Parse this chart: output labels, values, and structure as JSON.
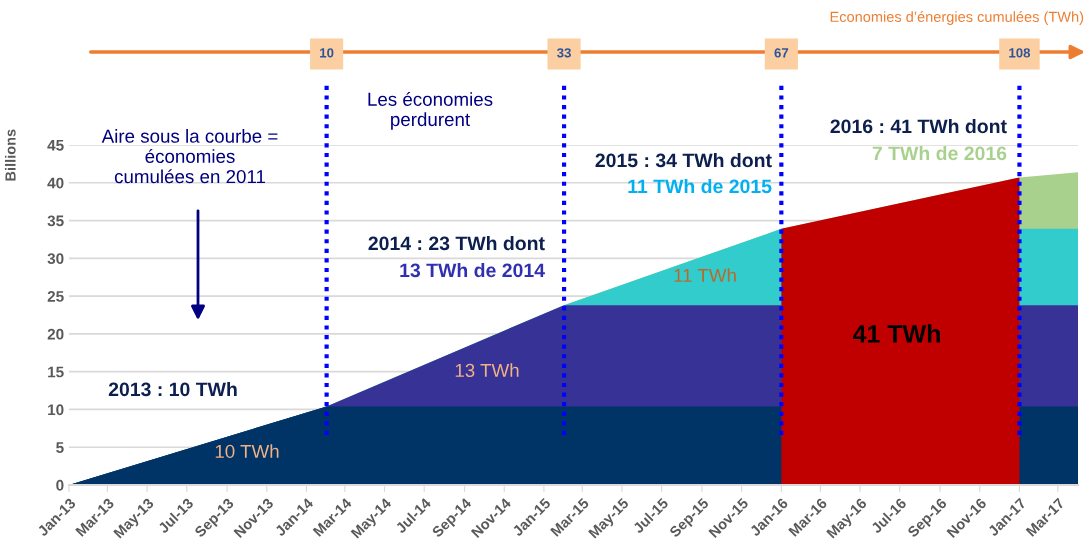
{
  "chart_data": {
    "type": "area",
    "ylabel": "Billions",
    "x": [
      "2013-01",
      "2014-02",
      "2015-02",
      "2016-01",
      "2017-01",
      "2017-04"
    ],
    "series": [
      {
        "color": "#a9d18e",
        "values": [
          0,
          10.4,
          23.8,
          33.9,
          40.7,
          41.4
        ]
      },
      {
        "color": "#33cccc",
        "values": [
          0,
          10.4,
          23.8,
          33.9,
          33.9,
          33.9
        ]
      },
      {
        "color": "#373396",
        "values": [
          0,
          10.4,
          23.8,
          23.8,
          23.8,
          23.8
        ]
      },
      {
        "color": "#003366",
        "values": [
          0,
          10.4,
          10.4,
          10.4,
          10.4,
          10.4
        ]
      },
      {
        "color": "#c00000",
        "x": [
          "2016-01",
          "2017-01"
        ],
        "values": [
          33.9,
          40.7
        ]
      }
    ],
    "xlim": [
      "2013-01",
      "2017-04"
    ],
    "xticks": [
      {
        "value": "2013-01",
        "label": "Jan-13"
      },
      {
        "value": "2013-03",
        "label": "Mar-13"
      },
      {
        "value": "2013-05",
        "label": "May-13"
      },
      {
        "value": "2013-07",
        "label": "Jul-13"
      },
      {
        "value": "2013-09",
        "label": "Sep-13"
      },
      {
        "value": "2013-11",
        "label": "Nov-13"
      },
      {
        "value": "2014-01",
        "label": "Jan-14"
      },
      {
        "value": "2014-03",
        "label": "Mar-14"
      },
      {
        "value": "2014-05",
        "label": "May-14"
      },
      {
        "value": "2014-07",
        "label": "Jul-14"
      },
      {
        "value": "2014-09",
        "label": "Sep-14"
      },
      {
        "value": "2014-11",
        "label": "Nov-14"
      },
      {
        "value": "2015-01",
        "label": "Jan-15"
      },
      {
        "value": "2015-03",
        "label": "Mar-15"
      },
      {
        "value": "2015-05",
        "label": "May-15"
      },
      {
        "value": "2015-07",
        "label": "Jul-15"
      },
      {
        "value": "2015-09",
        "label": "Sep-15"
      },
      {
        "value": "2015-11",
        "label": "Nov-15"
      },
      {
        "value": "2016-01",
        "label": "Jan-16"
      },
      {
        "value": "2016-03",
        "label": "Mar-16"
      },
      {
        "value": "2016-05",
        "label": "May-16"
      },
      {
        "value": "2016-07",
        "label": "Jul-16"
      },
      {
        "value": "2016-09",
        "label": "Sep-16"
      },
      {
        "value": "2016-11",
        "label": "Nov-16"
      },
      {
        "value": "2017-01",
        "label": "Jan-17"
      },
      {
        "value": "2017-03",
        "label": "Mar-17"
      }
    ],
    "ylim": [
      0,
      45
    ],
    "yticks": [
      0,
      5,
      10,
      15,
      20,
      25,
      30,
      35,
      40,
      45
    ],
    "grid": "y",
    "ref_lines": [
      {
        "axis": "x",
        "value": "2014-02",
        "label": "10",
        "color": "#0000ff",
        "line_style": "dotted"
      },
      {
        "axis": "x",
        "value": "2015-02",
        "label": "33",
        "color": "#0000ff",
        "line_style": "dotted"
      },
      {
        "axis": "x",
        "value": "2016-01",
        "label": "67",
        "color": "#0000ff",
        "line_style": "dotted"
      },
      {
        "axis": "x",
        "value": "2017-01",
        "label": "108",
        "color": "#0000ff",
        "line_style": "dotted"
      }
    ],
    "annotations": [
      "Aire sous la courbe =\néconomies\ncumulées en 2011",
      "Les économies\nperdurent",
      "2013 : 10 TWh",
      "2014 : 23 TWh dont",
      "13 TWh de 2014",
      "2015 : 34 TWh dont",
      "11 TWh de 2015",
      "2016 : 41 TWh dont",
      "7 TWh de 2016",
      "10 TWh",
      "13 TWh",
      "11 TWh",
      "41 TWh",
      "Economies d’énergies cumulées (TWh)"
    ]
  }
}
